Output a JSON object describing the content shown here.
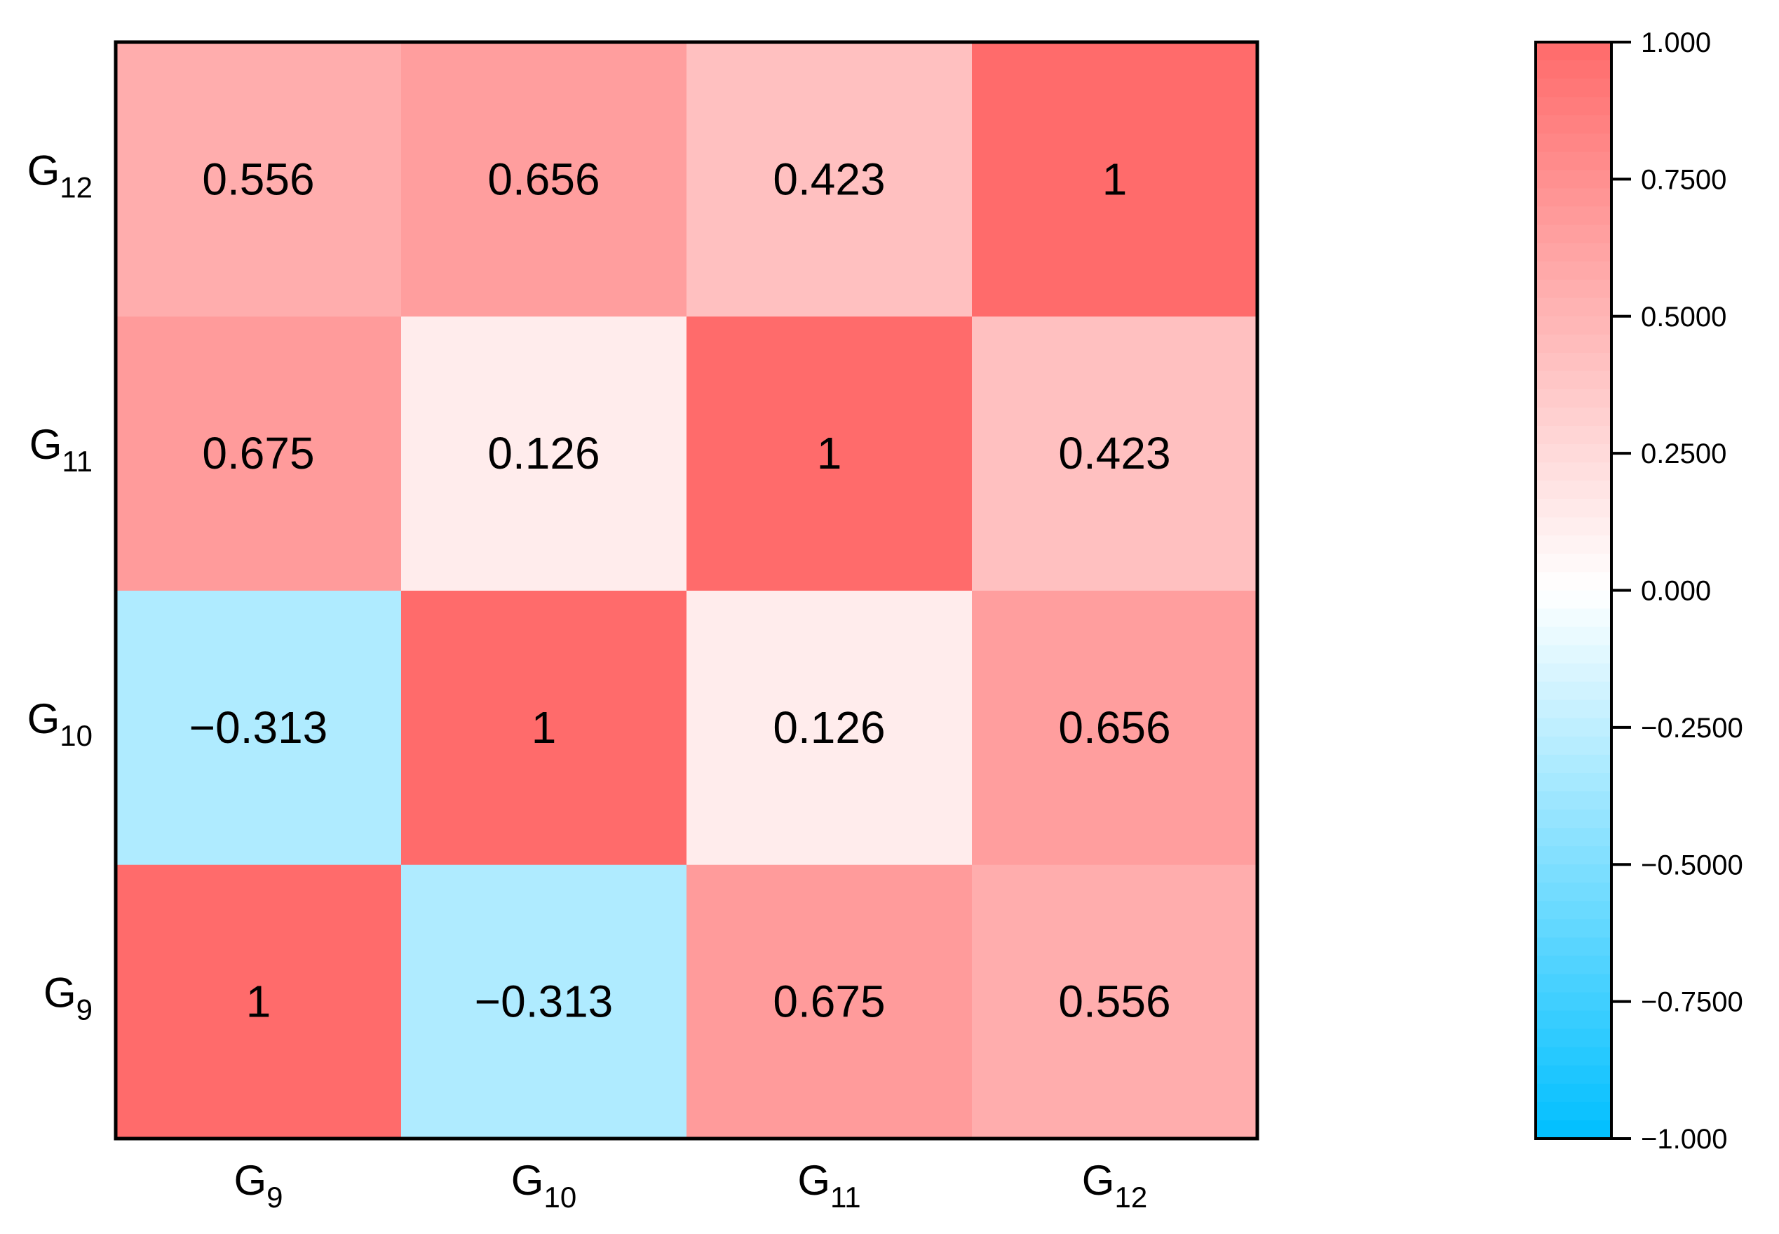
{
  "chart_data": {
    "type": "heatmap",
    "x_categories": [
      {
        "base": "G",
        "sub": "9"
      },
      {
        "base": "G",
        "sub": "10"
      },
      {
        "base": "G",
        "sub": "11"
      },
      {
        "base": "G",
        "sub": "12"
      }
    ],
    "y_categories": [
      {
        "base": "G",
        "sub": "9"
      },
      {
        "base": "G",
        "sub": "10"
      },
      {
        "base": "G",
        "sub": "11"
      },
      {
        "base": "G",
        "sub": "12"
      }
    ],
    "matrix": [
      [
        1,
        -0.313,
        0.675,
        0.556
      ],
      [
        -0.313,
        1,
        0.126,
        0.656
      ],
      [
        0.675,
        0.126,
        1,
        0.423
      ],
      [
        0.556,
        0.656,
        0.423,
        1
      ]
    ],
    "cell_labels": [
      [
        "1",
        "−0.313",
        "0.675",
        "0.556"
      ],
      [
        "−0.313",
        "1",
        "0.126",
        "0.656"
      ],
      [
        "0.675",
        "0.126",
        "1",
        "0.423"
      ],
      [
        "0.556",
        "0.656",
        "0.423",
        "1"
      ]
    ],
    "colorbar": {
      "range": [
        -1,
        1
      ],
      "ticks": [
        1,
        0.75,
        0.5,
        0.25,
        0,
        -0.25,
        -0.5,
        -0.75,
        -1
      ],
      "tick_labels": [
        "1.000",
        "0.7500",
        "0.5000",
        "0.2500",
        "0.000",
        "−0.2500",
        "−0.5000",
        "−0.7500",
        "−1.000"
      ],
      "colors": {
        "low": "#00bfff",
        "mid": "#ffffff",
        "high": "#ff6b6b"
      }
    },
    "title": "",
    "xlabel": "",
    "ylabel": ""
  }
}
